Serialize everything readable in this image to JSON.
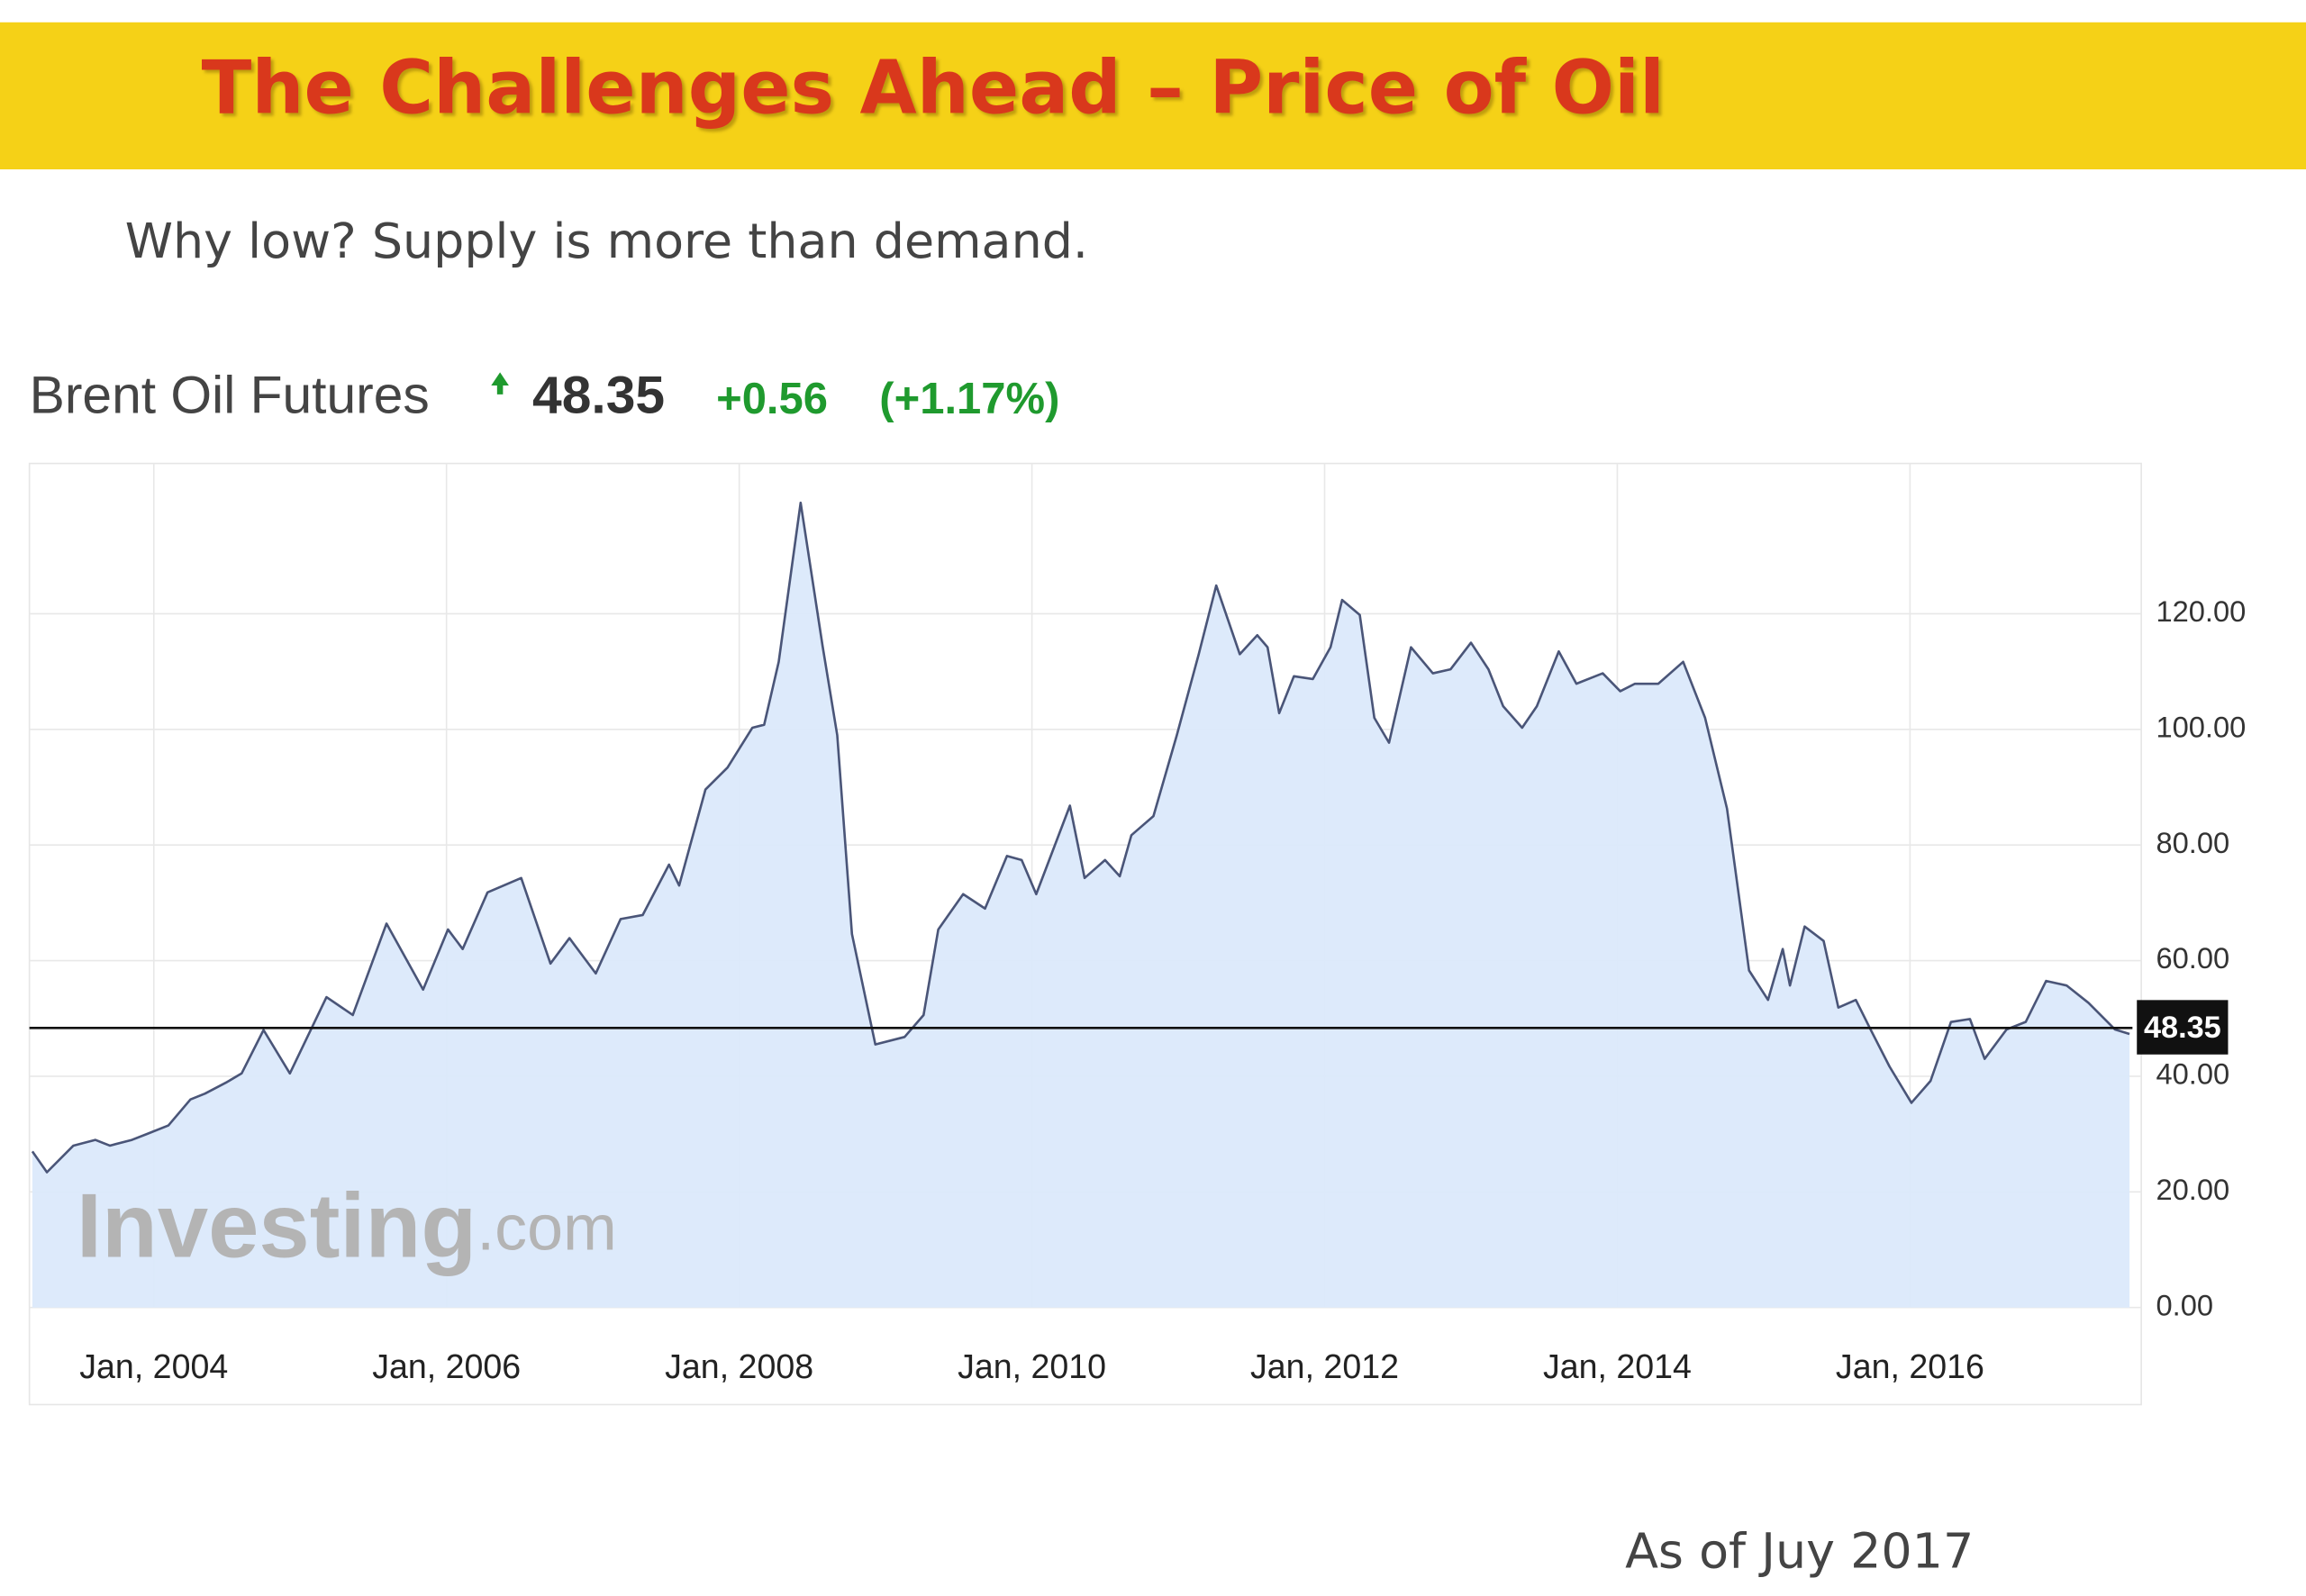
{
  "title": "The Challenges Ahead – Price of Oil",
  "subtitle": "Why low? Supply is more than demand.",
  "footnote": "As of Juy 2017",
  "chart_data": {
    "type": "line",
    "name": "Brent Oil Futures",
    "price": 48.35,
    "change": "+0.56",
    "change_percent": "(+1.17%)",
    "watermark_brand": "Investing",
    "watermark_suffix": ".com",
    "color": "#4a5578",
    "area_color": "#dbe9fb",
    "current_line_color": "#111111",
    "grid": true,
    "x": [
      2003.17,
      2003.27,
      2003.45,
      2003.6,
      2003.7,
      2003.85,
      2003.95,
      2004.1,
      2004.25,
      2004.35,
      2004.5,
      2004.6,
      2004.75,
      2004.93,
      2005.18,
      2005.36,
      2005.59,
      2005.84,
      2006.01,
      2006.11,
      2006.28,
      2006.51,
      2006.71,
      2006.84,
      2007.02,
      2007.19,
      2007.34,
      2007.52,
      2007.59,
      2007.77,
      2007.92,
      2008.09,
      2008.17,
      2008.27,
      2008.42,
      2008.57,
      2008.67,
      2008.77,
      2008.93,
      2009.13,
      2009.26,
      2009.36,
      2009.53,
      2009.68,
      2009.83,
      2009.93,
      2010.03,
      2010.26,
      2010.36,
      2010.5,
      2010.6,
      2010.68,
      2010.83,
      2010.99,
      2011.14,
      2011.26,
      2011.42,
      2011.54,
      2011.61,
      2011.69,
      2011.79,
      2011.92,
      2012.04,
      2012.12,
      2012.24,
      2012.34,
      2012.44,
      2012.59,
      2012.74,
      2012.86,
      2013.0,
      2013.12,
      2013.22,
      2013.35,
      2013.45,
      2013.6,
      2013.72,
      2013.9,
      2014.02,
      2014.12,
      2014.28,
      2014.45,
      2014.6,
      2014.75,
      2014.9,
      2015.03,
      2015.13,
      2015.18,
      2015.28,
      2015.41,
      2015.51,
      2015.63,
      2015.73,
      2015.86,
      2016.01,
      2016.14,
      2016.28,
      2016.41,
      2016.51,
      2016.66,
      2016.79,
      2016.93,
      2017.07,
      2017.22,
      2017.4,
      2017.5
    ],
    "values": [
      27,
      23.4,
      28,
      29,
      28,
      29,
      30,
      31.5,
      36,
      37,
      39,
      40.5,
      48,
      40.5,
      53.7,
      50.6,
      66.4,
      55,
      65.4,
      62,
      71.8,
      74.3,
      59.5,
      63.9,
      57.8,
      67.2,
      67.9,
      76.6,
      73,
      89.6,
      93.4,
      100.3,
      100.8,
      111.7,
      139.2,
      114.3,
      99,
      64.6,
      45.5,
      46.8,
      50.6,
      65.4,
      71.5,
      69,
      78.1,
      77.4,
      71.5,
      86.8,
      74.3,
      77.4,
      74.6,
      81.7,
      85,
      99,
      113,
      124.9,
      113,
      116.3,
      114.2,
      102.8,
      109.2,
      108.7,
      114.2,
      122.4,
      119.8,
      102,
      97.7,
      114.2,
      109.7,
      110.4,
      115,
      110.4,
      104,
      100.3,
      104,
      113.5,
      107.9,
      109.7,
      106.6,
      107.9,
      107.9,
      111.7,
      102,
      86.3,
      58.3,
      53.2,
      62,
      55.7,
      65.9,
      63.4,
      51.9,
      53.2,
      48.1,
      41.7,
      35.4,
      39.2,
      49.4,
      49.9,
      43,
      48.1,
      49.4,
      56.5,
      55.7,
      52.7,
      48.1,
      47.3
    ],
    "xlim": [
      2003.15,
      2017.52
    ],
    "xticks": [
      {
        "value": 2004,
        "label": "Jan, 2004"
      },
      {
        "value": 2006,
        "label": "Jan, 2006"
      },
      {
        "value": 2008,
        "label": "Jan, 2008"
      },
      {
        "value": 2010,
        "label": "Jan, 2010"
      },
      {
        "value": 2012,
        "label": "Jan, 2012"
      },
      {
        "value": 2014,
        "label": "Jan, 2014"
      },
      {
        "value": 2016,
        "label": "Jan, 2016"
      }
    ],
    "ylim": [
      0,
      146
    ],
    "yticks": [
      {
        "value": 0,
        "label": "0.00"
      },
      {
        "value": 20,
        "label": "20.00"
      },
      {
        "value": 40,
        "label": "40.00"
      },
      {
        "value": 60,
        "label": "60.00"
      },
      {
        "value": 80,
        "label": "80.00"
      },
      {
        "value": 100,
        "label": "100.00"
      },
      {
        "value": 120,
        "label": "120.00"
      }
    ]
  }
}
